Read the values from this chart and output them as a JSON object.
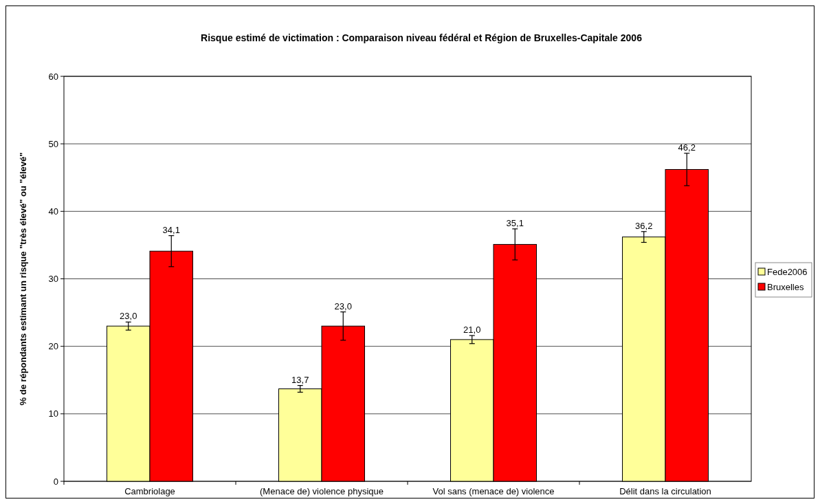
{
  "chart_data": {
    "type": "bar",
    "title": "Risque estimé de victimation : Comparaison niveau fédéral et Région de Bruxelles-Capitale 2006",
    "ylabel": "% de répondants estimant un risque \"très élevé\" ou \"élevé\"",
    "categories": [
      "Cambriolage",
      "(Menace de) violence physique",
      "Vol sans (menace de) violence",
      "Délit dans la circulation"
    ],
    "series": [
      {
        "name": "Fede2006",
        "color": "#ffff99",
        "values": [
          23.0,
          13.7,
          21.0,
          36.2
        ],
        "errors": [
          0.6,
          0.5,
          0.6,
          0.8
        ],
        "value_labels": [
          "23,0",
          "13,7",
          "21,0",
          "36,2"
        ]
      },
      {
        "name": "Bruxelles",
        "color": "#ff0000",
        "values": [
          34.1,
          23.0,
          35.1,
          46.2
        ],
        "errors": [
          2.3,
          2.1,
          2.3,
          2.4
        ],
        "value_labels": [
          "34,1",
          "23,0",
          "35,1",
          "46,2"
        ]
      }
    ],
    "ylim": [
      0,
      60
    ],
    "yticks": [
      0,
      10,
      20,
      30,
      40,
      50,
      60
    ],
    "grid": "y",
    "legend": "right"
  }
}
